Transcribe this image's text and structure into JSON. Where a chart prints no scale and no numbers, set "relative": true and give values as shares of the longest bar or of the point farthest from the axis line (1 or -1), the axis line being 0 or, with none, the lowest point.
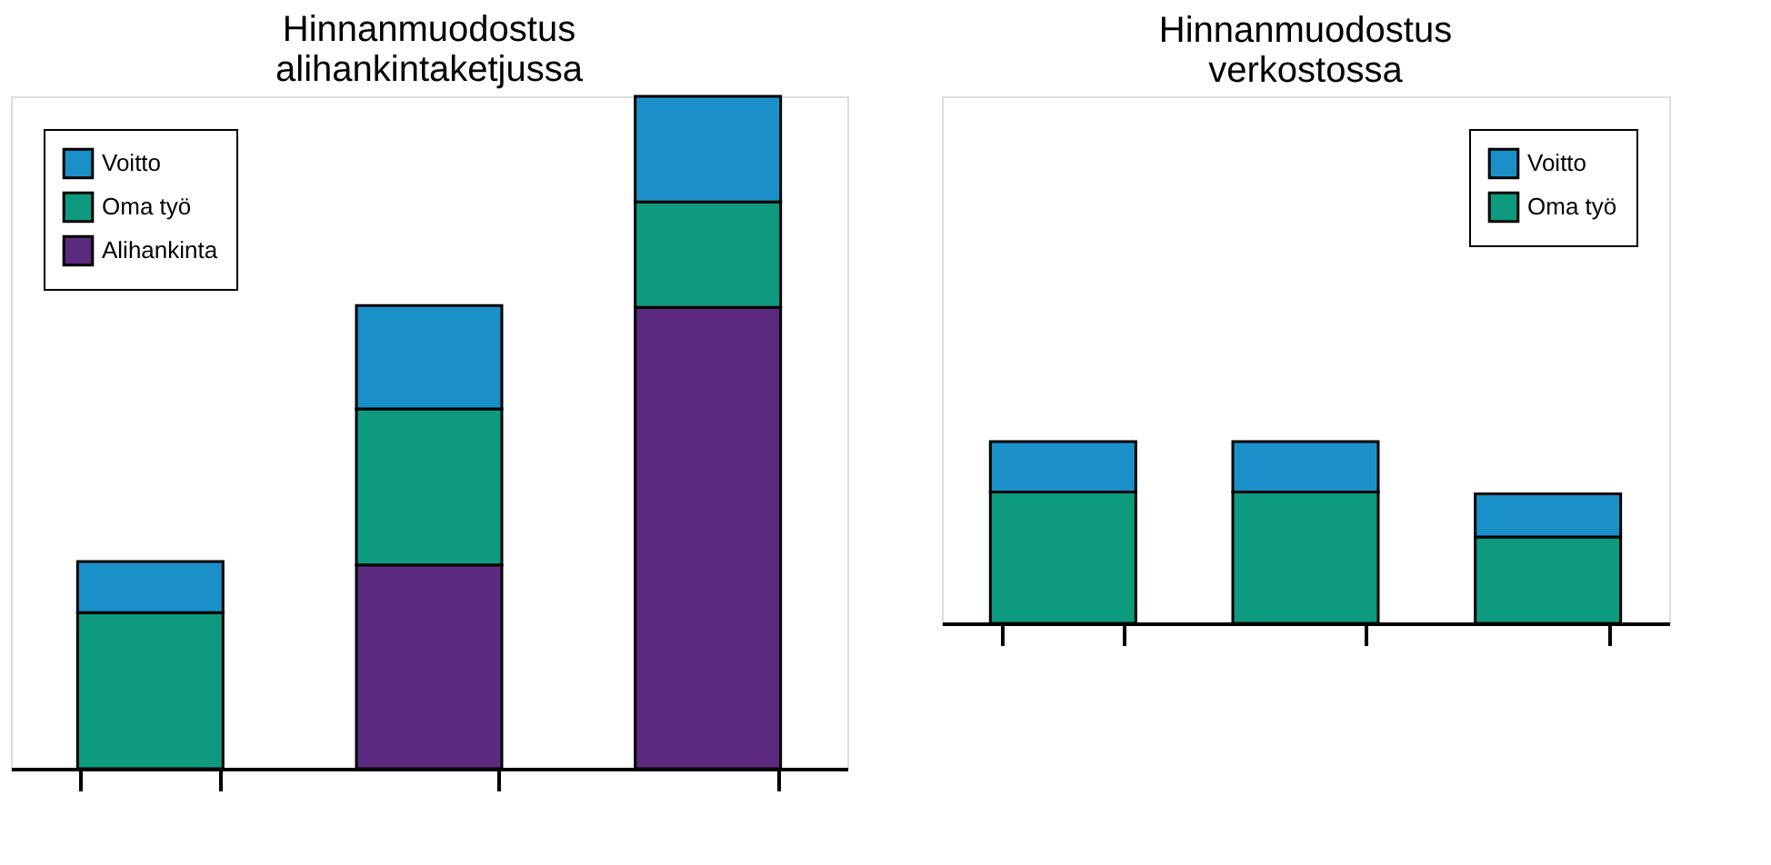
{
  "chart_data": [
    {
      "type": "bar",
      "title": "Hinnanmuodostus\nalihankintaketjussa",
      "relative": true,
      "stacked": true,
      "legend": "top left",
      "categories": [
        null,
        null,
        null
      ],
      "series": [
        {
          "name": "Alihankinta",
          "color": "#5b2a7e",
          "values": [
            0,
            0.303,
            0.686
          ]
        },
        {
          "name": "Oma työ",
          "color": "#0e9a7e",
          "values": [
            0.232,
            0.232,
            0.157
          ]
        },
        {
          "name": "Voitto",
          "color": "#1a8fc8",
          "values": [
            0.076,
            0.154,
            0.157
          ]
        }
      ]
    },
    {
      "type": "bar",
      "title": "Hinnanmuodostus\nverkostossa",
      "relative": true,
      "stacked": true,
      "legend": "top right",
      "categories": [
        null,
        null,
        null
      ],
      "series": [
        {
          "name": "Oma työ",
          "color": "#0e9a7e",
          "values": [
            0.723,
            0.723,
            0.475
          ]
        },
        {
          "name": "Voitto",
          "color": "#1a8fc8",
          "values": [
            0.277,
            0.277,
            0.238
          ]
        }
      ]
    }
  ]
}
